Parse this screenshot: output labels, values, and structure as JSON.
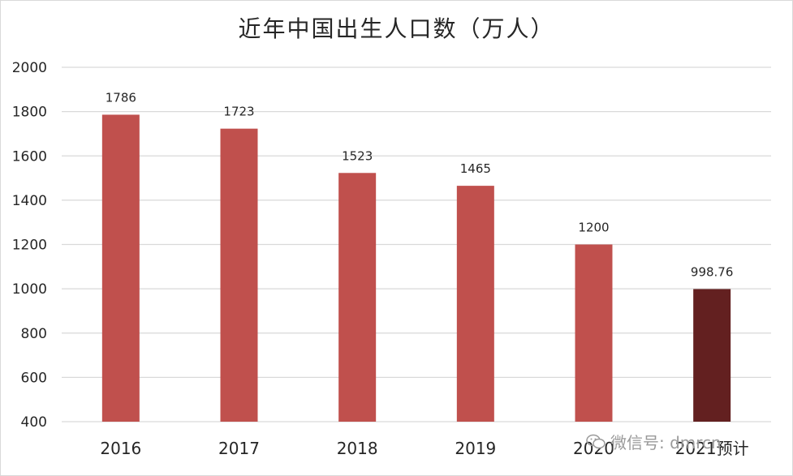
{
  "chart_data": {
    "type": "bar",
    "title": "近年中国出生人口数（万人）",
    "categories": [
      "2016",
      "2017",
      "2018",
      "2019",
      "2020",
      "2021预计"
    ],
    "values": [
      1786,
      1723,
      1523,
      1465,
      1200,
      998.76
    ],
    "data_labels": [
      "1786",
      "1723",
      "1523",
      "1465",
      "1200",
      "998.76"
    ],
    "ylim": [
      400,
      2000
    ],
    "yticks": [
      "400",
      "600",
      "800",
      "1000",
      "1200",
      "1400",
      "1600",
      "1800",
      "2000"
    ],
    "xlabel": "",
    "ylabel": "",
    "grid": true,
    "bar_colors": [
      "#c0504d",
      "#c0504d",
      "#c0504d",
      "#c0504d",
      "#c0504d",
      "#632020"
    ]
  },
  "watermark": {
    "text": "微信号: dmrcn",
    "icon": "wechat-icon"
  }
}
